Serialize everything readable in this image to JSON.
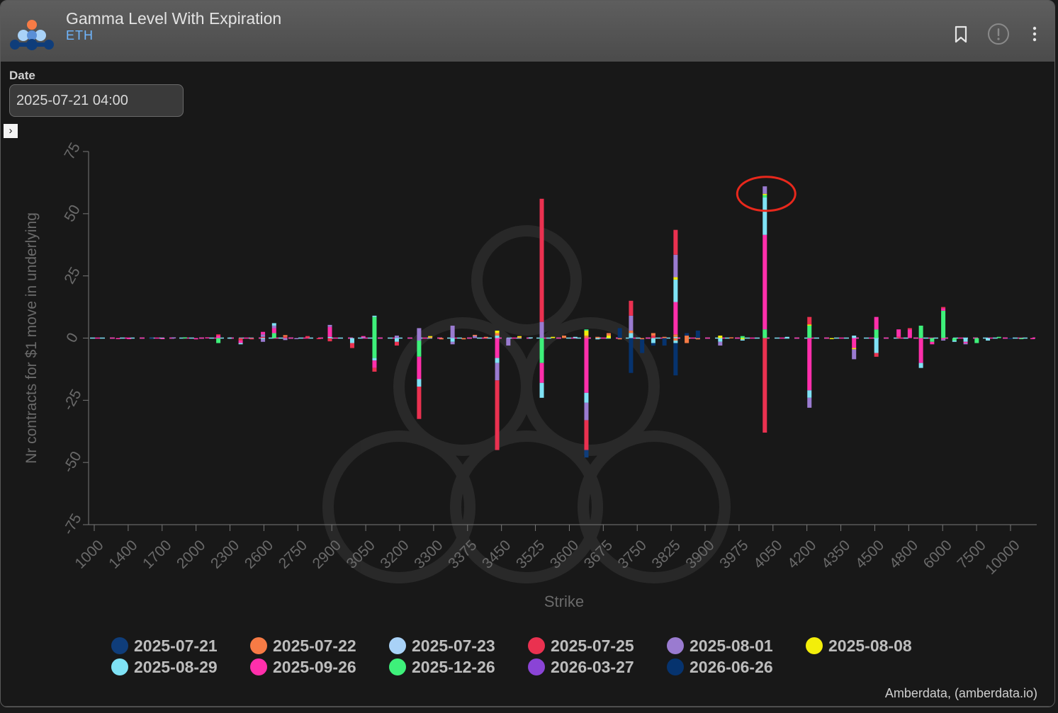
{
  "header": {
    "title": "Gamma Level With Expiration",
    "subtitle": "ETH"
  },
  "controls": {
    "date_label": "Date",
    "date_value": "2025-07-21 04:00"
  },
  "colors": {
    "background": "#181818",
    "accent": "#6fb6ff",
    "highlight_circle": "#e8281c"
  },
  "icons": [
    "logo-icon",
    "bookmark-icon",
    "alert-icon",
    "more-vertical-icon",
    "chevron-right-icon"
  ],
  "credit": "Amberdata, (amberdata.io)",
  "chart_data": {
    "type": "bar",
    "stacked": true,
    "xlabel": "Strike",
    "ylabel": "Nr contracts for $1 move in underlying",
    "ylim": [
      -75,
      75
    ],
    "yticks": [
      75,
      50,
      25,
      0,
      -25,
      -50,
      -75
    ],
    "xtick_labels": [
      "1000",
      "1400",
      "1700",
      "2000",
      "2300",
      "2600",
      "2750",
      "2900",
      "3050",
      "3200",
      "3300",
      "3375",
      "3450",
      "3525",
      "3600",
      "3675",
      "3750",
      "3825",
      "3900",
      "3975",
      "4050",
      "4200",
      "4350",
      "4500",
      "4800",
      "6000",
      "7500",
      "10000"
    ],
    "legend": [
      {
        "name": "2025-07-21",
        "color": "#0f3d7a"
      },
      {
        "name": "2025-07-22",
        "color": "#f77b45"
      },
      {
        "name": "2025-07-23",
        "color": "#a9d2f7"
      },
      {
        "name": "2025-07-25",
        "color": "#ea3150"
      },
      {
        "name": "2025-08-01",
        "color": "#9a7bd0"
      },
      {
        "name": "2025-08-08",
        "color": "#f3ee0a"
      },
      {
        "name": "2025-08-29",
        "color": "#7fe2f5"
      },
      {
        "name": "2025-09-26",
        "color": "#ff2fab"
      },
      {
        "name": "2025-12-26",
        "color": "#3ef07a"
      },
      {
        "name": "2026-03-27",
        "color": "#8a44d6"
      },
      {
        "name": "2026-06-26",
        "color": "#06336e"
      }
    ],
    "legend_placement": "bottom",
    "highlight": {
      "strike": "4000",
      "value": 60
    },
    "grid": false,
    "bars": [
      {
        "cat": "1000",
        "segs": []
      },
      {
        "cat": "1100",
        "segs": []
      },
      {
        "cat": "1200",
        "segs": [
          [
            "2025-09-26",
            -0.3
          ]
        ]
      },
      {
        "cat": "1300",
        "segs": [
          [
            "2025-09-26",
            -0.3
          ]
        ]
      },
      {
        "cat": "1400",
        "segs": []
      },
      {
        "cat": "1500",
        "segs": [
          [
            "2025-07-21",
            0.2
          ]
        ]
      },
      {
        "cat": "1600",
        "segs": [
          [
            "2025-09-26",
            -0.3
          ]
        ]
      },
      {
        "cat": "1700",
        "segs": [
          [
            "2025-08-01",
            0.3
          ]
        ]
      },
      {
        "cat": "1800",
        "segs": [
          [
            "2025-12-26",
            0.3
          ]
        ]
      },
      {
        "cat": "1900",
        "segs": [
          [
            "2025-09-26",
            -0.5
          ]
        ]
      },
      {
        "cat": "1950",
        "segs": [
          [
            "2025-09-26",
            0.3
          ]
        ]
      },
      {
        "cat": "2000",
        "segs": [
          [
            "2025-09-26",
            1
          ],
          [
            "2025-07-25",
            0.5
          ],
          [
            "2025-12-26",
            -2
          ]
        ]
      },
      {
        "cat": "2100",
        "segs": [
          [
            "2025-08-29",
            0.2
          ]
        ]
      },
      {
        "cat": "2200",
        "segs": [
          [
            "2025-07-25",
            -1
          ],
          [
            "2025-09-26",
            -1
          ],
          [
            "2025-08-29",
            -0.5
          ]
        ]
      },
      {
        "cat": "2300",
        "segs": [
          [
            "2025-07-25",
            -0.5
          ]
        ]
      },
      {
        "cat": "2400",
        "segs": [
          [
            "2025-07-25",
            0.5
          ],
          [
            "2025-08-01",
            1
          ],
          [
            "2025-09-26",
            1
          ],
          [
            "2025-08-29",
            -0.5
          ],
          [
            "2025-08-01",
            -1
          ]
        ]
      },
      {
        "cat": "2500",
        "segs": [
          [
            "2025-12-26",
            2
          ],
          [
            "2025-09-26",
            2
          ],
          [
            "2025-08-01",
            1
          ],
          [
            "2025-08-29",
            1
          ]
        ]
      },
      {
        "cat": "2600",
        "segs": [
          [
            "2025-07-25",
            0.6
          ],
          [
            "2025-07-22",
            0.6
          ],
          [
            "2025-08-01",
            -0.8
          ]
        ]
      },
      {
        "cat": "2650",
        "segs": [
          [
            "2025-08-01",
            -0.3
          ]
        ]
      },
      {
        "cat": "2700",
        "segs": [
          [
            "2025-07-25",
            0.8
          ]
        ]
      },
      {
        "cat": "2750",
        "segs": [
          [
            "2025-07-25",
            -0.3
          ]
        ]
      },
      {
        "cat": "2800",
        "segs": [
          [
            "2025-08-29",
            0.5
          ],
          [
            "2025-09-26",
            4
          ],
          [
            "2025-08-01",
            0.8
          ],
          [
            "2025-07-25",
            -1.3
          ]
        ]
      },
      {
        "cat": "2850",
        "segs": []
      },
      {
        "cat": "2900",
        "segs": [
          [
            "2025-08-29",
            -2
          ],
          [
            "2025-07-25",
            -2
          ]
        ]
      },
      {
        "cat": "2950",
        "segs": [
          [
            "2025-08-01",
            0.5
          ],
          [
            "2025-09-26",
            0.3
          ]
        ]
      },
      {
        "cat": "3000",
        "segs": [
          [
            "2025-12-26",
            8.5
          ],
          [
            "2025-08-29",
            0.5
          ],
          [
            "2025-12-26",
            -8
          ],
          [
            "2025-08-29",
            -1
          ],
          [
            "2025-09-26",
            -3
          ],
          [
            "2025-07-25",
            -1.5
          ]
        ]
      },
      {
        "cat": "3050",
        "segs": []
      },
      {
        "cat": "3100",
        "segs": [
          [
            "2025-08-01",
            1
          ],
          [
            "2025-08-29",
            -1.5
          ],
          [
            "2025-07-25",
            -1.5
          ]
        ]
      },
      {
        "cat": "3150",
        "segs": []
      },
      {
        "cat": "3200",
        "segs": [
          [
            "2025-08-01",
            4
          ],
          [
            "2025-08-01",
            -1
          ],
          [
            "2025-12-26",
            -6.5
          ],
          [
            "2025-09-26",
            -9
          ],
          [
            "2025-08-29",
            -3
          ],
          [
            "2025-07-25",
            -13
          ]
        ]
      },
      {
        "cat": "3225",
        "segs": [
          [
            "2025-07-22",
            0.5
          ],
          [
            "2025-08-08",
            0.3
          ]
        ]
      },
      {
        "cat": "3250",
        "segs": [
          [
            "2025-07-22",
            -0.5
          ]
        ]
      },
      {
        "cat": "3300",
        "segs": [
          [
            "2025-08-01",
            5
          ],
          [
            "2025-08-29",
            -1.5
          ],
          [
            "2025-08-01",
            -1
          ]
        ]
      },
      {
        "cat": "3325",
        "segs": [
          [
            "2025-07-22",
            -0.5
          ]
        ]
      },
      {
        "cat": "3350",
        "segs": [
          [
            "2025-08-01",
            1
          ],
          [
            "2025-07-22",
            0.3
          ]
        ]
      },
      {
        "cat": "3375",
        "segs": [
          [
            "2025-07-22",
            0.5
          ]
        ]
      },
      {
        "cat": "3400",
        "segs": [
          [
            "2025-08-29",
            1
          ],
          [
            "2025-07-22",
            1
          ],
          [
            "2025-08-08",
            1
          ],
          [
            "2025-09-26",
            -8
          ],
          [
            "2025-08-29",
            -2
          ],
          [
            "2025-08-01",
            -7
          ],
          [
            "2025-07-25",
            -28
          ]
        ]
      },
      {
        "cat": "3425",
        "segs": [
          [
            "2025-08-01",
            -3
          ]
        ]
      },
      {
        "cat": "3450",
        "segs": [
          [
            "2025-07-22",
            0.5
          ],
          [
            "2025-08-08",
            0.3
          ]
        ]
      },
      {
        "cat": "3475",
        "segs": [
          [
            "2025-08-29",
            0.3
          ]
        ]
      },
      {
        "cat": "3500",
        "segs": [
          [
            "2025-08-01",
            6.5
          ],
          [
            "2025-07-25",
            49.5
          ],
          [
            "2025-12-26",
            -10
          ],
          [
            "2025-09-26",
            -8
          ],
          [
            "2025-08-29",
            -6
          ]
        ]
      },
      {
        "cat": "3525",
        "segs": [
          [
            "2025-08-08",
            0.5
          ]
        ]
      },
      {
        "cat": "3550",
        "segs": [
          [
            "2025-07-22",
            1
          ]
        ]
      },
      {
        "cat": "3575",
        "segs": [
          [
            "2025-08-29",
            0.5
          ]
        ]
      },
      {
        "cat": "3600",
        "segs": [
          [
            "2025-07-22",
            1
          ],
          [
            "2025-08-08",
            2
          ],
          [
            "2025-12-26",
            0.5
          ],
          [
            "2025-09-26",
            -22
          ],
          [
            "2025-08-29",
            -4
          ],
          [
            "2025-08-01",
            -7
          ],
          [
            "2025-07-25",
            -12
          ],
          [
            "2025-07-21",
            -3
          ]
        ]
      },
      {
        "cat": "3625",
        "segs": [
          [
            "2025-07-22",
            0.5
          ],
          [
            "2025-08-29",
            -0.5
          ]
        ]
      },
      {
        "cat": "3650",
        "segs": [
          [
            "2025-08-08",
            1
          ],
          [
            "2025-07-22",
            1
          ]
        ]
      },
      {
        "cat": "3675",
        "segs": [
          [
            "2026-06-26",
            4
          ],
          [
            "2025-07-22",
            -0.5
          ]
        ]
      },
      {
        "cat": "3700",
        "segs": [
          [
            "2025-08-29",
            2
          ],
          [
            "2025-07-22",
            1
          ],
          [
            "2025-08-01",
            6
          ],
          [
            "2025-07-25",
            6
          ],
          [
            "2026-06-26",
            -14
          ]
        ]
      },
      {
        "cat": "3725",
        "segs": [
          [
            "2025-07-22",
            -0.5
          ],
          [
            "2026-06-26",
            -5.5
          ]
        ]
      },
      {
        "cat": "3750",
        "segs": [
          [
            "2025-07-25",
            1
          ],
          [
            "2025-07-22",
            1
          ],
          [
            "2025-08-29",
            -2
          ],
          [
            "2026-06-26",
            -1
          ]
        ]
      },
      {
        "cat": "3775",
        "segs": [
          [
            "2025-07-22",
            0.5
          ],
          [
            "2026-06-26",
            -3
          ]
        ]
      },
      {
        "cat": "3800",
        "segs": [
          [
            "2025-08-29",
            0.5
          ],
          [
            "2025-07-22",
            1
          ],
          [
            "2025-09-26",
            13
          ],
          [
            "2025-08-29",
            9
          ],
          [
            "2025-08-08",
            1
          ],
          [
            "2025-08-01",
            9
          ],
          [
            "2025-07-25",
            10
          ],
          [
            "2025-07-22",
            -1
          ],
          [
            "2025-08-29",
            -1
          ],
          [
            "2026-06-26",
            -13
          ]
        ]
      },
      {
        "cat": "3825",
        "segs": [
          [
            "2025-07-22",
            1
          ],
          [
            "2026-06-26",
            1
          ],
          [
            "2025-07-22",
            -2
          ]
        ]
      },
      {
        "cat": "3850",
        "segs": [
          [
            "2026-06-26",
            3
          ],
          [
            "2025-07-22",
            -0.5
          ]
        ]
      },
      {
        "cat": "3875",
        "segs": []
      },
      {
        "cat": "3900",
        "segs": [
          [
            "2025-08-08",
            1
          ],
          [
            "2025-08-29",
            -1.5
          ],
          [
            "2025-08-01",
            -1.5
          ]
        ]
      },
      {
        "cat": "3925",
        "segs": [
          [
            "2025-07-22",
            0.3
          ]
        ]
      },
      {
        "cat": "3950",
        "segs": [
          [
            "2025-12-26",
            0.8
          ],
          [
            "2025-08-08",
            -0.5
          ],
          [
            "2025-08-29",
            -0.5
          ]
        ]
      },
      {
        "cat": "3975",
        "segs": []
      },
      {
        "cat": "4000",
        "segs": [
          [
            "2025-12-26",
            3.5
          ],
          [
            "2025-09-26",
            38
          ],
          [
            "2025-08-29",
            15
          ],
          [
            "2025-12-26",
            1
          ],
          [
            "2025-08-08",
            0.5
          ],
          [
            "2025-08-01",
            3
          ],
          [
            "2025-07-25",
            -38
          ]
        ]
      },
      {
        "cat": "4025",
        "segs": []
      },
      {
        "cat": "4050",
        "segs": [
          [
            "2025-08-29",
            0.5
          ]
        ]
      },
      {
        "cat": "4100",
        "segs": []
      },
      {
        "cat": "4200",
        "segs": [
          [
            "2025-12-26",
            5
          ],
          [
            "2025-08-08",
            0.5
          ],
          [
            "2025-07-25",
            3
          ],
          [
            "2025-09-26",
            -21
          ],
          [
            "2025-08-29",
            -3
          ],
          [
            "2025-08-01",
            -4
          ]
        ]
      },
      {
        "cat": "4250",
        "segs": []
      },
      {
        "cat": "4300",
        "segs": [
          [
            "2025-08-08",
            -0.3
          ]
        ]
      },
      {
        "cat": "4350",
        "segs": []
      },
      {
        "cat": "4400",
        "segs": [
          [
            "2025-08-29",
            1
          ],
          [
            "2025-09-26",
            -4
          ],
          [
            "2025-08-08",
            -0.5
          ],
          [
            "2025-08-01",
            -4
          ]
        ]
      },
      {
        "cat": "4450",
        "segs": []
      },
      {
        "cat": "4500",
        "segs": [
          [
            "2025-12-26",
            3.5
          ],
          [
            "2025-09-26",
            5
          ],
          [
            "2025-08-29",
            -6
          ],
          [
            "2025-07-25",
            -1.5
          ]
        ]
      },
      {
        "cat": "4600",
        "segs": []
      },
      {
        "cat": "4700",
        "segs": [
          [
            "2025-07-25",
            0.5
          ],
          [
            "2025-09-26",
            3
          ]
        ]
      },
      {
        "cat": "4800",
        "segs": [
          [
            "2025-09-26",
            3.5
          ],
          [
            "2025-07-25",
            0.5
          ]
        ]
      },
      {
        "cat": "5000",
        "segs": [
          [
            "2025-12-26",
            5
          ],
          [
            "2025-09-26",
            -10
          ],
          [
            "2025-08-29",
            -2
          ]
        ]
      },
      {
        "cat": "5500",
        "segs": [
          [
            "2025-12-26",
            -1.5
          ],
          [
            "2025-09-26",
            -1
          ]
        ]
      },
      {
        "cat": "6000",
        "segs": [
          [
            "2025-12-26",
            11
          ],
          [
            "2025-09-26",
            1
          ],
          [
            "2025-07-25",
            0.5
          ],
          [
            "2025-09-26",
            -0.5
          ],
          [
            "2025-08-01",
            -0.5
          ]
        ]
      },
      {
        "cat": "6500",
        "segs": [
          [
            "2025-12-26",
            -1
          ],
          [
            "2025-08-29",
            -0.5
          ]
        ]
      },
      {
        "cat": "7000",
        "segs": [
          [
            "2025-08-29",
            -1.5
          ],
          [
            "2025-09-26",
            -0.5
          ],
          [
            "2025-08-01",
            -0.5
          ]
        ]
      },
      {
        "cat": "7500",
        "segs": [
          [
            "2025-12-26",
            -2
          ]
        ]
      },
      {
        "cat": "8000",
        "segs": [
          [
            "2025-08-29",
            -1
          ]
        ]
      },
      {
        "cat": "9000",
        "segs": [
          [
            "2025-12-26",
            0.5
          ]
        ]
      },
      {
        "cat": "10000",
        "segs": [
          [
            "2026-06-26",
            -0.3
          ]
        ]
      },
      {
        "cat": "11000",
        "segs": [
          [
            "2025-12-26",
            -0.3
          ]
        ]
      },
      {
        "cat": "12000",
        "segs": [
          [
            "2025-09-26",
            -0.3
          ]
        ]
      }
    ]
  }
}
